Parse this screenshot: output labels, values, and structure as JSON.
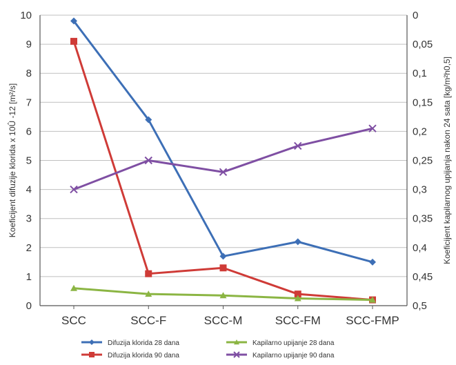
{
  "chart_data": {
    "type": "line",
    "categories": [
      "SCC",
      "SCC-F",
      "SCC-M",
      "SCC-FM",
      "SCC-FMP"
    ],
    "ylabel": "Koeficijent difuzije klorida x 10Û -12 [m²/s]",
    "y2label": "Koeficijent kapilarnog upijanja nakon 24 sata [kg/m²h0,5]",
    "ylim": [
      0,
      10
    ],
    "y2lim": [
      0,
      0.5
    ],
    "y2_reversed": true,
    "y_ticks": [
      "0",
      "1",
      "2",
      "3",
      "4",
      "5",
      "6",
      "7",
      "8",
      "9",
      "10"
    ],
    "y2_ticks": [
      "0",
      "0,05",
      "0,1",
      "0,15",
      "0,2",
      "0,25",
      "0,3",
      "0,35",
      "0,4",
      "0,45",
      "0,5"
    ],
    "grid": true,
    "legend_position": "bottom",
    "series": [
      {
        "name": "Difuzija klorida 28 dana",
        "axis": "left",
        "color": "#3d6fb6",
        "marker": "diamond",
        "values": [
          9.8,
          6.4,
          1.7,
          2.2,
          1.5
        ]
      },
      {
        "name": "Difuzija klorida 90 dana",
        "axis": "left",
        "color": "#cf3b37",
        "marker": "square",
        "values": [
          9.1,
          1.1,
          1.3,
          0.4,
          0.2
        ]
      },
      {
        "name": "Kapilarno upijanje 28 dana",
        "axis": "left",
        "color": "#8bb543",
        "marker": "triangle",
        "values": [
          0.6,
          0.4,
          0.35,
          0.25,
          0.2
        ]
      },
      {
        "name": "Kapilarno upijanje 90 dana",
        "axis": "left",
        "color": "#7f4fa3",
        "marker": "cross",
        "values": [
          4.0,
          5.0,
          4.6,
          5.5,
          6.1
        ]
      }
    ]
  }
}
